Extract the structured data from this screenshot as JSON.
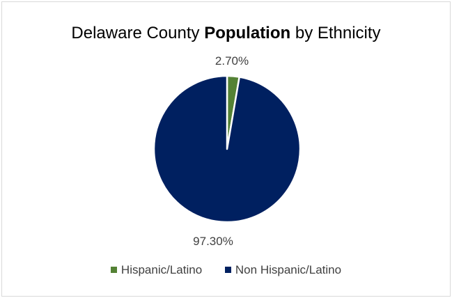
{
  "chart_data": {
    "type": "pie",
    "title_parts": {
      "prefix": "Delaware County ",
      "bold": "Population",
      "suffix": " by Ethnicity"
    },
    "series": [
      {
        "name": "Hispanic/Latino",
        "value": 2.7,
        "label": "2.70%",
        "color": "#548235"
      },
      {
        "name": "Non Hispanic/Latino",
        "value": 97.3,
        "label": "97.30%",
        "color": "#002060"
      }
    ],
    "legend_position": "bottom",
    "start_angle": "12 o'clock, clockwise"
  }
}
